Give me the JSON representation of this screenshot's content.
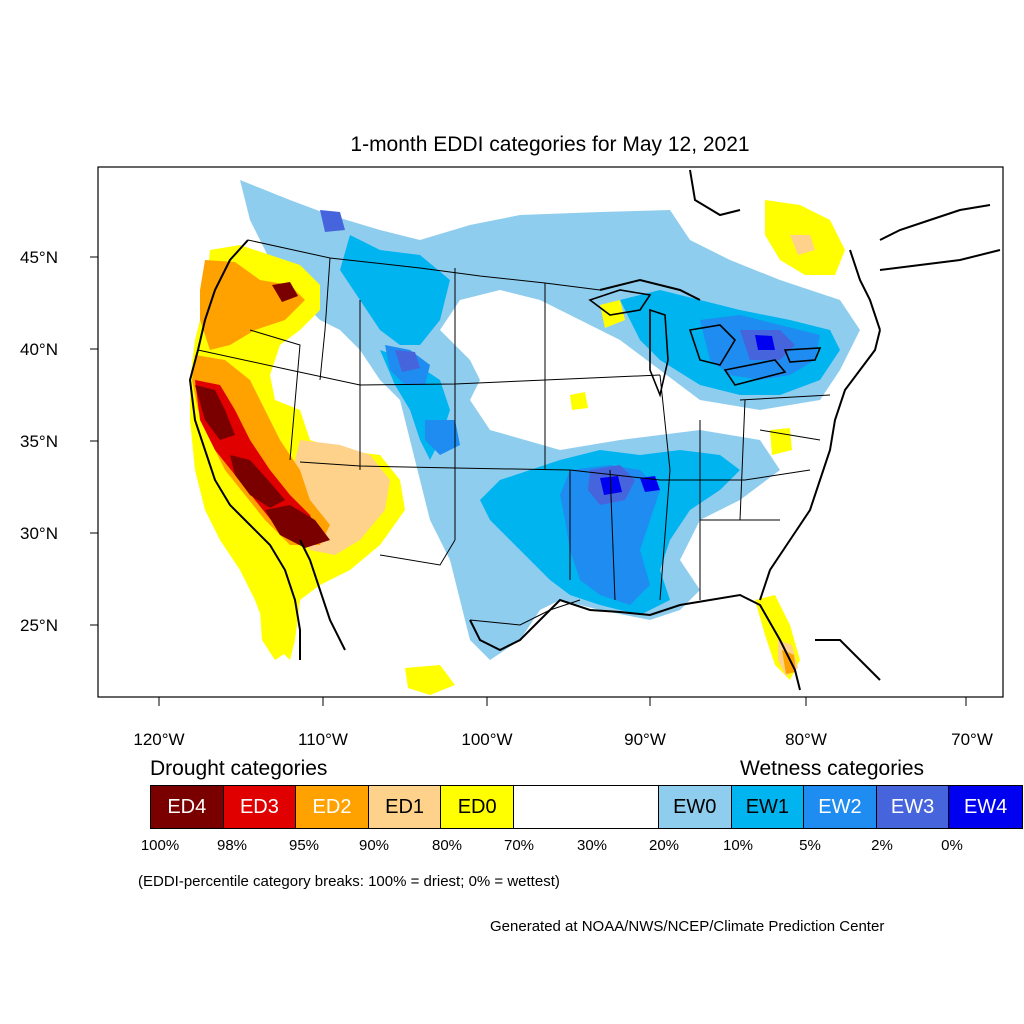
{
  "title": "1-month EDDI categories for May 12, 2021",
  "axes": {
    "lat_labels": [
      "45°N",
      "40°N",
      "35°N",
      "30°N",
      "25°N"
    ],
    "lon_labels": [
      "120°W",
      "110°W",
      "100°W",
      "90°W",
      "80°W",
      "70°W"
    ]
  },
  "legend": {
    "drought_title": "Drought categories",
    "wetness_title": "Wetness categories",
    "categories": [
      {
        "label": "ED4",
        "color": "#7a0000",
        "text_color": "#ffffff"
      },
      {
        "label": "ED3",
        "color": "#e00000",
        "text_color": "#ffffff"
      },
      {
        "label": "ED2",
        "color": "#ffa200",
        "text_color": "#ffffff"
      },
      {
        "label": "ED1",
        "color": "#ffd28c",
        "text_color": "#000000"
      },
      {
        "label": "ED0",
        "color": "#ffff00",
        "text_color": "#000000"
      },
      {
        "label": "",
        "color": "#ffffff",
        "text_color": "#000000"
      },
      {
        "label": "EW0",
        "color": "#8fcdee",
        "text_color": "#000000"
      },
      {
        "label": "EW1",
        "color": "#00b4f0",
        "text_color": "#000000"
      },
      {
        "label": "EW2",
        "color": "#1e8cf0",
        "text_color": "#ffffff"
      },
      {
        "label": "EW3",
        "color": "#4664dc",
        "text_color": "#ffffff"
      },
      {
        "label": "EW4",
        "color": "#0000f0",
        "text_color": "#ffffff"
      }
    ],
    "breaks": [
      "100%",
      "98%",
      "95%",
      "90%",
      "80%",
      "70%",
      "30%",
      "20%",
      "10%",
      "5%",
      "2%",
      "0%"
    ]
  },
  "note": "(EDDI-percentile category breaks: 100% = driest; 0% = wettest)",
  "credit": "Generated at NOAA/NWS/NCEP/Climate Prediction Center"
}
